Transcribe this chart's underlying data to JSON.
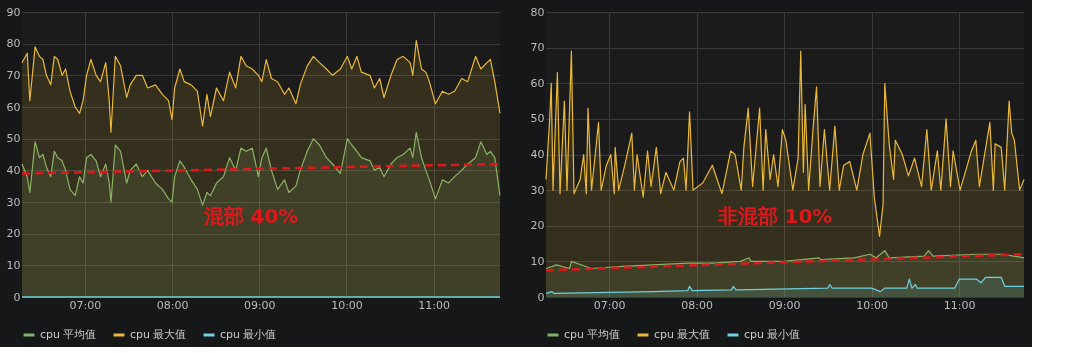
{
  "chart_data": [
    {
      "type": "area",
      "xlim": [
        6.28,
        11.76
      ],
      "ylim": [
        0,
        90
      ],
      "yticks": [
        0,
        10,
        20,
        30,
        40,
        50,
        60,
        70,
        80,
        90
      ],
      "xticks": [
        {
          "value": 7,
          "label": "07:00"
        },
        {
          "value": 8,
          "label": "08:00"
        },
        {
          "value": 9,
          "label": "09:00"
        },
        {
          "value": 10,
          "label": "10:00"
        },
        {
          "value": 11,
          "label": "11:00"
        }
      ],
      "grid": true,
      "legend": "bottom left",
      "annotations": [
        "混部 40%"
      ],
      "x": [
        6.28,
        6.34,
        6.37,
        6.43,
        6.48,
        6.52,
        6.56,
        6.61,
        6.65,
        6.69,
        6.74,
        6.78,
        6.83,
        6.89,
        6.94,
        6.98,
        7.02,
        7.07,
        7.13,
        7.18,
        7.24,
        7.28,
        7.3,
        7.35,
        7.41,
        7.48,
        7.52,
        7.59,
        7.66,
        7.72,
        7.81,
        7.89,
        7.96,
        8.0,
        8.03,
        8.09,
        8.14,
        8.22,
        8.29,
        8.35,
        8.4,
        8.44,
        8.51,
        8.59,
        8.66,
        8.73,
        8.79,
        8.85,
        8.92,
        8.99,
        9.03,
        9.08,
        9.14,
        9.21,
        9.29,
        9.34,
        9.42,
        9.47,
        9.55,
        9.62,
        9.69,
        9.77,
        9.84,
        9.93,
        10.01,
        10.06,
        10.12,
        10.17,
        10.27,
        10.32,
        10.38,
        10.43,
        10.51,
        10.58,
        10.65,
        10.73,
        10.76,
        10.8,
        10.86,
        10.91,
        10.95,
        11.02,
        11.1,
        11.17,
        11.24,
        11.32,
        11.39,
        11.48,
        11.54,
        11.61,
        11.65,
        11.7,
        11.76
      ],
      "series": [
        {
          "name": "cpu 平均值",
          "color": "#7eb26d",
          "values": [
            42,
            38,
            33,
            49,
            44,
            45,
            41,
            38,
            46,
            44,
            43,
            40,
            34,
            32,
            38,
            36,
            44,
            45,
            43,
            38,
            42,
            36,
            30,
            48,
            46,
            36,
            40,
            42,
            38,
            40,
            36,
            34,
            31,
            30,
            38,
            43,
            41,
            37,
            34,
            29,
            33,
            32,
            36,
            38,
            44,
            40,
            47,
            46,
            47,
            38,
            44,
            47,
            40,
            34,
            37,
            33,
            35,
            40,
            46,
            50,
            48,
            44,
            42,
            39,
            50,
            48,
            46,
            44,
            43,
            40,
            41,
            38,
            42,
            44,
            45,
            47,
            44,
            52,
            44,
            40,
            37,
            31,
            37,
            36,
            38,
            40,
            42,
            44,
            49,
            45,
            46,
            44,
            32
          ]
        },
        {
          "name": "cpu 最大值",
          "color": "#eab839",
          "values": [
            74,
            77,
            62,
            79,
            76,
            75,
            70,
            67,
            76,
            75,
            70,
            72,
            65,
            60,
            58,
            62,
            70,
            75,
            70,
            68,
            74,
            62,
            52,
            76,
            73,
            63,
            67,
            70,
            70,
            66,
            67,
            64,
            62,
            56,
            66,
            72,
            68,
            67,
            65,
            54,
            64,
            57,
            66,
            62,
            71,
            66,
            76,
            73,
            72,
            70,
            68,
            75,
            69,
            68,
            64,
            66,
            61,
            67,
            73,
            76,
            74,
            72,
            70,
            72,
            76,
            72,
            76,
            71,
            70,
            66,
            69,
            63,
            70,
            75,
            76,
            74,
            70,
            81,
            72,
            71,
            68,
            61,
            65,
            64,
            65,
            69,
            68,
            76,
            72,
            74,
            75,
            68,
            58
          ]
        },
        {
          "name": "cpu 最小值",
          "type": "line",
          "color": "#6ed0e0",
          "x": [
            6.28,
            11.76
          ],
          "values": [
            0,
            0
          ]
        },
        {
          "type": "line",
          "line_style": "dashed",
          "color": "#e0181c",
          "x": [
            6.28,
            11.76
          ],
          "values": [
            39,
            42
          ]
        }
      ]
    },
    {
      "type": "area",
      "xlim": [
        6.28,
        11.74
      ],
      "ylim": [
        0,
        80
      ],
      "yticks": [
        0,
        10,
        20,
        30,
        40,
        50,
        60,
        70,
        80
      ],
      "xticks": [
        {
          "value": 7,
          "label": "07:00"
        },
        {
          "value": 8,
          "label": "08:00"
        },
        {
          "value": 9,
          "label": "09:00"
        },
        {
          "value": 10,
          "label": "10:00"
        },
        {
          "value": 11,
          "label": "11:00"
        }
      ],
      "grid": true,
      "legend": "bottom left",
      "annotations": [
        "非混部 10%"
      ],
      "series": [
        {
          "name": "cpu 平均值",
          "color": "#7eb26d",
          "x": [
            6.28,
            6.4,
            6.55,
            6.57,
            6.8,
            7.1,
            7.5,
            7.9,
            8.2,
            8.5,
            8.6,
            8.62,
            9.0,
            9.4,
            9.42,
            9.8,
            9.98,
            10.05,
            10.15,
            10.2,
            10.6,
            10.65,
            10.7,
            11.2,
            11.5,
            11.74
          ],
          "values": [
            8,
            9,
            8,
            10,
            8,
            8.5,
            9,
            9.5,
            9.5,
            10,
            11,
            10,
            10,
            11,
            10.5,
            11,
            12,
            11,
            13,
            11,
            11.5,
            13,
            11.5,
            12,
            12,
            11
          ]
        },
        {
          "name": "cpu 最大值",
          "color": "#eab839",
          "x": [
            6.28,
            6.32,
            6.34,
            6.36,
            6.41,
            6.44,
            6.49,
            6.52,
            6.57,
            6.6,
            6.67,
            6.71,
            6.74,
            6.76,
            6.8,
            6.88,
            6.91,
            6.97,
            7.02,
            7.06,
            7.07,
            7.11,
            7.18,
            7.26,
            7.29,
            7.32,
            7.39,
            7.44,
            7.48,
            7.54,
            7.59,
            7.65,
            7.74,
            7.81,
            7.85,
            7.88,
            7.92,
            7.96,
            8.07,
            8.18,
            8.29,
            8.39,
            8.44,
            8.51,
            8.54,
            8.59,
            8.64,
            8.72,
            8.76,
            8.79,
            8.84,
            8.88,
            8.93,
            8.98,
            9.02,
            9.1,
            9.16,
            9.19,
            9.22,
            9.24,
            9.28,
            9.33,
            9.37,
            9.41,
            9.46,
            9.52,
            9.58,
            9.63,
            9.68,
            9.75,
            9.83,
            9.9,
            9.98,
            10.03,
            10.09,
            10.13,
            10.15,
            10.2,
            10.25,
            10.27,
            10.35,
            10.42,
            10.49,
            10.57,
            10.63,
            10.68,
            10.75,
            10.79,
            10.85,
            10.9,
            10.93,
            11.01,
            11.14,
            11.19,
            11.23,
            11.35,
            11.39,
            11.41,
            11.48,
            11.52,
            11.57,
            11.6,
            11.63,
            11.69,
            11.74
          ],
          "values": [
            33,
            49,
            60,
            30,
            63,
            29,
            55,
            30,
            69,
            29,
            33,
            40,
            29,
            53,
            30,
            49,
            30,
            37,
            40,
            29,
            42,
            30,
            37,
            46,
            30,
            40,
            28,
            41,
            31,
            42,
            29,
            35,
            30,
            38,
            39,
            30,
            52,
            30,
            32,
            37,
            29,
            41,
            40,
            30,
            42,
            53,
            31,
            53,
            30,
            47,
            33,
            40,
            31,
            47,
            44,
            30,
            39,
            69,
            35,
            54,
            30,
            47,
            59,
            31,
            47,
            30,
            48,
            30,
            37,
            38,
            30,
            40,
            46,
            28,
            17,
            26,
            60,
            43,
            33,
            44,
            40,
            34,
            39,
            31,
            47,
            30,
            41,
            30,
            50,
            31,
            41,
            30,
            41,
            44,
            31,
            49,
            30,
            43,
            42,
            30,
            55,
            46,
            44,
            30,
            33
          ]
        },
        {
          "name": "cpu 最小值",
          "color": "#6ed0e0",
          "x": [
            6.28,
            6.35,
            6.37,
            7.5,
            7.9,
            7.92,
            7.95,
            8.4,
            8.42,
            8.45,
            9.5,
            9.52,
            9.55,
            10.0,
            10.1,
            10.15,
            10.4,
            10.43,
            10.46,
            10.5,
            10.52,
            10.95,
            11.0,
            11.2,
            11.25,
            11.3,
            11.48,
            11.52,
            11.74
          ],
          "values": [
            1,
            1.5,
            1,
            1.5,
            1.8,
            3,
            1.8,
            2,
            3,
            2,
            2.5,
            3.5,
            2.5,
            2.5,
            1.5,
            2.5,
            2.5,
            5,
            2.5,
            3.5,
            2.5,
            2.5,
            5,
            5,
            4,
            5.5,
            5.5,
            3,
            3
          ]
        },
        {
          "type": "line",
          "line_style": "dashed",
          "color": "#e0181c",
          "x": [
            6.28,
            11.74
          ],
          "values": [
            7.5,
            12
          ]
        }
      ]
    }
  ]
}
